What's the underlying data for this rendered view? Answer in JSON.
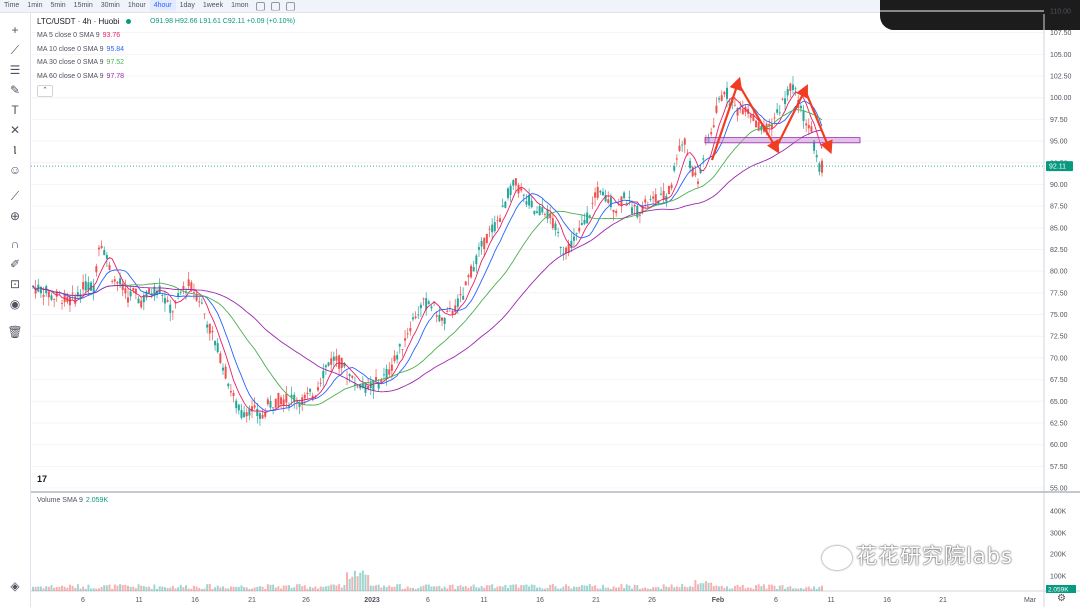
{
  "topbar": {
    "time_label": "Time",
    "timeframes": [
      "1min",
      "5min",
      "15min",
      "30min",
      "1hour",
      "4hour",
      "1day",
      "1week",
      "1mon"
    ],
    "active": "4hour"
  },
  "legend": {
    "symbol": "LTC/USDT · 4h · Huobi",
    "ohlc": "O91.98 H92.66 L91.61 C92.11 +0.09 (+0.10%)",
    "ma": [
      {
        "label": "MA 5 close 0 SMA 9",
        "value": "93.76",
        "color": "#e91e63"
      },
      {
        "label": "MA 10 close 0 SMA 9",
        "value": "95.84",
        "color": "#2962ff"
      },
      {
        "label": "MA 30 close 0 SMA 9",
        "value": "97.52",
        "color": "#4caf50"
      },
      {
        "label": "MA 60 close 0 SMA 9",
        "value": "97.78",
        "color": "#9c27b0"
      }
    ]
  },
  "volume_legend": {
    "label": "Volume SMA 9",
    "value": "2.059K"
  },
  "watermark": "花花研究院labs",
  "logo_text": "17",
  "chart_data": {
    "type": "candlestick",
    "price_axis": {
      "ticks": [
        "110.00",
        "107.50",
        "105.00",
        "102.50",
        "100.00",
        "97.50",
        "95.00",
        "92.50",
        "90.00",
        "87.50",
        "85.00",
        "82.50",
        "80.00",
        "77.50",
        "75.00",
        "72.50",
        "70.00",
        "67.50",
        "65.00",
        "62.50",
        "60.00",
        "57.50",
        "55.00"
      ],
      "ylim": [
        55,
        110
      ],
      "last_price": "92.11",
      "current_line": 92.11
    },
    "volume_axis": {
      "ticks": [
        "400K",
        "300K",
        "200K",
        "100K"
      ],
      "last_volume": "2.059K"
    },
    "time_axis": {
      "ticks": [
        "6",
        "11",
        "16",
        "21",
        "26",
        "2023",
        "6",
        "11",
        "16",
        "21",
        "26",
        "Feb",
        "6",
        "11",
        "16",
        "21",
        "Mar"
      ]
    },
    "price_path": [
      [
        0,
        78.2
      ],
      [
        3,
        77.8
      ],
      [
        6,
        77.0
      ],
      [
        8,
        77.2
      ],
      [
        10,
        76.5
      ],
      [
        12,
        76.8
      ],
      [
        14,
        77.5
      ],
      [
        16,
        78.5
      ],
      [
        18,
        78.0
      ],
      [
        20,
        84.0
      ],
      [
        22,
        81.5
      ],
      [
        24,
        79.0
      ],
      [
        26,
        78.5
      ],
      [
        28,
        77.0
      ],
      [
        30,
        77.5
      ],
      [
        32,
        76.5
      ],
      [
        34,
        77.2
      ],
      [
        36,
        77.8
      ],
      [
        38,
        78.0
      ],
      [
        40,
        76.0
      ],
      [
        42,
        75.5
      ],
      [
        44,
        77.5
      ],
      [
        46,
        78.5
      ],
      [
        48,
        77.8
      ],
      [
        50,
        76.5
      ],
      [
        52,
        74.0
      ],
      [
        54,
        72.0
      ],
      [
        56,
        70.0
      ],
      [
        58,
        67.5
      ],
      [
        60,
        65.0
      ],
      [
        62,
        63.5
      ],
      [
        64,
        64.2
      ],
      [
        66,
        63.8
      ],
      [
        68,
        63.0
      ],
      [
        70,
        64.5
      ],
      [
        72,
        65.0
      ],
      [
        74,
        65.3
      ],
      [
        76,
        65.1
      ],
      [
        78,
        65.5
      ],
      [
        80,
        65.0
      ],
      [
        82,
        65.5
      ],
      [
        84,
        66.0
      ],
      [
        86,
        68.0
      ],
      [
        88,
        69.5
      ],
      [
        90,
        70.0
      ],
      [
        92,
        69.2
      ],
      [
        94,
        68.0
      ],
      [
        96,
        67.0
      ],
      [
        98,
        66.8
      ],
      [
        100,
        66.5
      ],
      [
        102,
        67.0
      ],
      [
        104,
        67.5
      ],
      [
        106,
        68.5
      ],
      [
        108,
        70.0
      ],
      [
        110,
        71.5
      ],
      [
        112,
        73.5
      ],
      [
        114,
        75.0
      ],
      [
        116,
        76.0
      ],
      [
        118,
        76.5
      ],
      [
        120,
        75.5
      ],
      [
        122,
        74.0
      ],
      [
        124,
        75.0
      ],
      [
        126,
        76.0
      ],
      [
        128,
        77.0
      ],
      [
        130,
        79.5
      ],
      [
        132,
        81.5
      ],
      [
        134,
        83.0
      ],
      [
        136,
        84.5
      ],
      [
        138,
        85.5
      ],
      [
        140,
        87.0
      ],
      [
        142,
        89.5
      ],
      [
        144,
        90.0
      ],
      [
        146,
        88.5
      ],
      [
        148,
        88.0
      ],
      [
        150,
        86.5
      ],
      [
        152,
        87.5
      ],
      [
        154,
        86.0
      ],
      [
        156,
        84.5
      ],
      [
        158,
        82.5
      ],
      [
        160,
        83.0
      ],
      [
        162,
        84.0
      ],
      [
        164,
        85.5
      ],
      [
        166,
        87.0
      ],
      [
        168,
        89.0
      ],
      [
        170,
        88.5
      ],
      [
        172,
        88.0
      ],
      [
        174,
        87.0
      ],
      [
        176,
        89.0
      ],
      [
        178,
        87.5
      ],
      [
        180,
        87.0
      ],
      [
        182,
        87.5
      ],
      [
        184,
        88.0
      ],
      [
        186,
        88.2
      ],
      [
        188,
        88.5
      ],
      [
        190,
        89.5
      ],
      [
        192,
        94.0
      ],
      [
        194,
        95.0
      ],
      [
        196,
        92.0
      ],
      [
        198,
        90.0
      ],
      [
        200,
        94.0
      ],
      [
        202,
        96.0
      ],
      [
        204,
        99.0
      ],
      [
        206,
        101.0
      ],
      [
        208,
        99.5
      ],
      [
        210,
        98.5
      ],
      [
        212,
        99.0
      ],
      [
        214,
        98.0
      ],
      [
        216,
        96.5
      ],
      [
        218,
        96.0
      ],
      [
        220,
        97.0
      ],
      [
        222,
        98.5
      ],
      [
        224,
        100.0
      ],
      [
        226,
        101.5
      ],
      [
        228,
        99.5
      ],
      [
        230,
        97.5
      ],
      [
        232,
        96.0
      ],
      [
        234,
        91.5
      ],
      [
        235,
        92.11
      ]
    ],
    "annotations": {
      "pattern_arrows": "double-top (M) drawn in red",
      "support_box": [
        94.8,
        95.4
      ]
    }
  }
}
